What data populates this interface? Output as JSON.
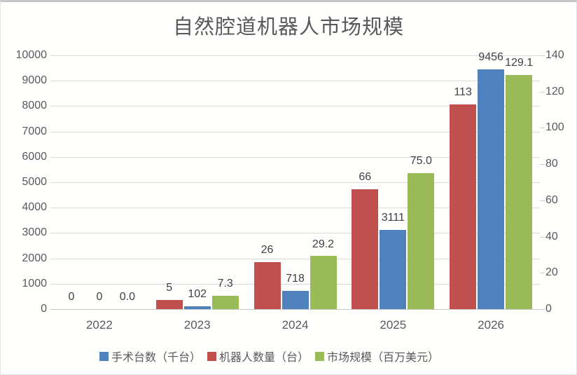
{
  "chart_data": {
    "type": "bar",
    "title": "自然腔道机器人市场规模",
    "categories": [
      "2022",
      "2023",
      "2024",
      "2025",
      "2026"
    ],
    "series": [
      {
        "name": "机器人数量（台）",
        "color": "#C0504D",
        "axis": "right",
        "values": [
          0,
          5,
          26,
          66,
          113
        ],
        "labels": [
          "0",
          "5",
          "26",
          "66",
          "113"
        ]
      },
      {
        "name": "手术台数（千台）",
        "color": "#4F81BD",
        "axis": "left",
        "values": [
          0,
          102,
          718,
          3111,
          9456
        ],
        "labels": [
          "0",
          "102",
          "718",
          "3111",
          "9456"
        ]
      },
      {
        "name": "市场规模（百万美元）",
        "color": "#9BBB59",
        "axis": "right",
        "values": [
          0,
          7.3,
          29.2,
          75.0,
          129.1
        ],
        "labels": [
          "0.0",
          "7.3",
          "29.2",
          "75.0",
          "129.1"
        ]
      }
    ],
    "legend": {
      "position": "bottom",
      "entries": [
        {
          "label": "手术台数（千台）",
          "color": "#4F81BD"
        },
        {
          "label": "机器人数量（台）",
          "color": "#C0504D"
        },
        {
          "label": "市场规模（百万美元）",
          "color": "#9BBB59"
        }
      ]
    },
    "left_axis": {
      "min": 0,
      "max": 10000,
      "step": 1000,
      "ticks": [
        "0",
        "1000",
        "2000",
        "3000",
        "4000",
        "5000",
        "6000",
        "7000",
        "8000",
        "9000",
        "10000"
      ]
    },
    "right_axis": {
      "min": 0,
      "max": 140,
      "step": 20,
      "ticks": [
        "0",
        "20",
        "40",
        "60",
        "80",
        "100",
        "120",
        "140"
      ]
    },
    "grid": true,
    "colors": {
      "gridline": "#dadada",
      "title_text": "#595959",
      "axis_text": "#595959",
      "data_label_text": "#404040"
    }
  }
}
